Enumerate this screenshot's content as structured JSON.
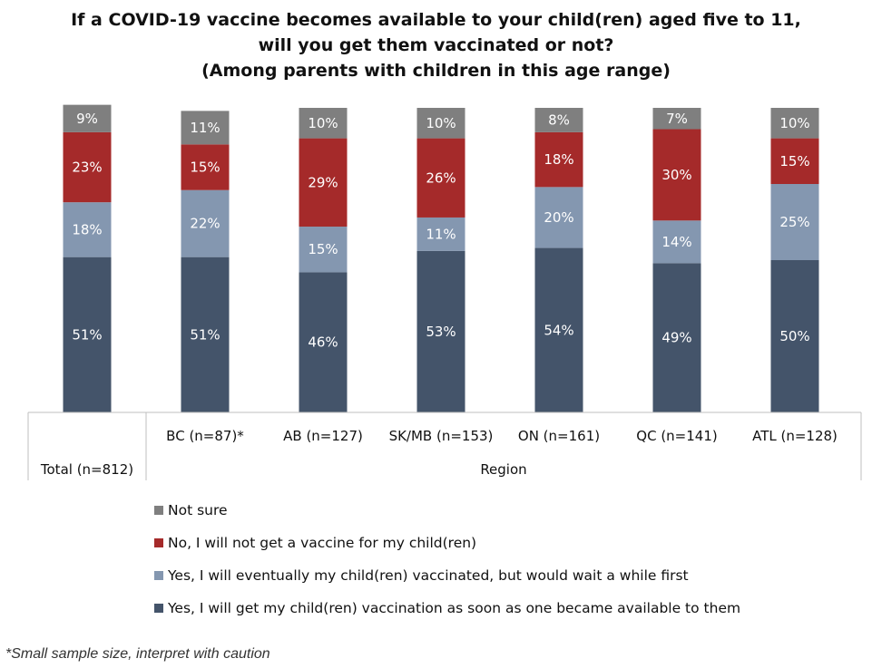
{
  "title_lines": [
    "If a COVID-19 vaccine becomes available to your child(ren) aged five to 11,",
    "will you get them vaccinated or not?",
    "(Among parents with children in this age range)"
  ],
  "footnote": "*Small sample size, interpret with caution",
  "colors": {
    "yes_now": "#44546a",
    "yes_wait": "#8497b0",
    "no": "#a52a2a",
    "not_sure": "#7f7f7f",
    "axis_line": "#bfbfbf"
  },
  "chart_data": {
    "type": "bar",
    "stacked": true,
    "percent": true,
    "categories": [
      "Total (n=812)",
      "BC (n=87)*",
      "AB (n=127)",
      "SK/MB (n=153)",
      "ON (n=161)",
      "QC (n=141)",
      "ATL (n=128)"
    ],
    "group_label": "Region",
    "series": [
      {
        "name": "Yes, I will get my child(ren) vaccination as soon as one became available to them",
        "color": "#44546a",
        "values": [
          51,
          51,
          46,
          53,
          54,
          49,
          50
        ]
      },
      {
        "name": "Yes, I will eventually my child(ren) vaccinated, but would wait a while first",
        "color": "#8497b0",
        "values": [
          18,
          22,
          15,
          11,
          20,
          14,
          25
        ]
      },
      {
        "name": "No, I will not get a vaccine for my child(ren)",
        "color": "#a52a2a",
        "values": [
          23,
          15,
          29,
          26,
          18,
          30,
          15
        ]
      },
      {
        "name": "Not sure",
        "color": "#7f7f7f",
        "values": [
          9,
          11,
          10,
          10,
          8,
          7,
          10
        ]
      }
    ],
    "legend_order": [
      3,
      2,
      1,
      0
    ],
    "legend_position": "bottom"
  }
}
